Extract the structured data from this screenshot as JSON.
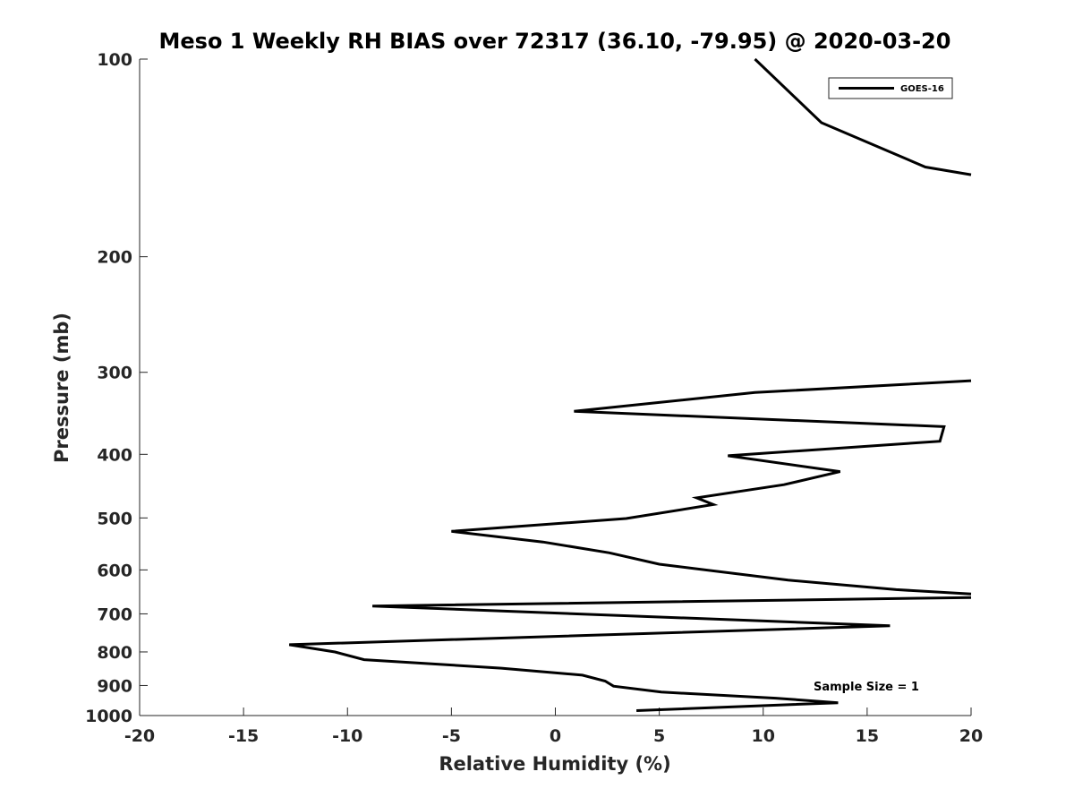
{
  "chart_data": {
    "type": "line",
    "title": "Meso 1 Weekly RH BIAS over 72317 (36.10, -79.95) @ 2020-03-20",
    "xlabel": "Relative Humidity (%)",
    "ylabel": "Pressure (mb)",
    "xlim": [
      -20,
      20
    ],
    "ylim": [
      100,
      1000
    ],
    "yscale": "log",
    "y_reversed": true,
    "grid": false,
    "legend_position": "top-right",
    "xticks": [
      -20,
      -15,
      -10,
      -5,
      0,
      5,
      10,
      15,
      20
    ],
    "xtick_labels": [
      "-20",
      "-15",
      "-10",
      "-5",
      "0",
      "5",
      "10",
      "15",
      "20"
    ],
    "yticks": [
      100,
      200,
      300,
      400,
      500,
      600,
      700,
      800,
      900,
      1000
    ],
    "ytick_labels": [
      "100",
      "200",
      "300",
      "400",
      "500",
      "600",
      "700",
      "800",
      "900",
      "1000"
    ],
    "series": [
      {
        "name": "GOES-16",
        "color": "#000000",
        "segments": [
          {
            "x": [
              9.6,
              12.8,
              17.8,
              20.0
            ],
            "y": [
              100,
              125,
              146,
              150
            ]
          },
          {
            "x": [
              20.0,
              9.6,
              0.9,
              18.7,
              18.5,
              8.3,
              13.7,
              11.0,
              6.8,
              7.6,
              3.4,
              -5.0,
              -0.6,
              2.6,
              5.0,
              11.2,
              16.4,
              20.0
            ],
            "y": [
              309,
              322,
              344,
              363,
              382,
              402,
              425,
              445,
              466,
              477,
              501,
              524,
              544,
              565,
              588,
              622,
              643,
              653
            ]
          },
          {
            "x": [
              20.0,
              -8.8,
              16.1,
              -12.8,
              -10.6,
              -9.2,
              -2.6,
              1.3,
              2.4,
              2.8,
              5.1,
              10.6,
              13.6,
              3.9
            ],
            "y": [
              661,
              681,
              730,
              780,
              800,
              822,
              847,
              868,
              886,
              902,
              921,
              941,
              956,
              983
            ]
          }
        ]
      }
    ],
    "annotations": [
      "Sample Size = 1"
    ]
  }
}
